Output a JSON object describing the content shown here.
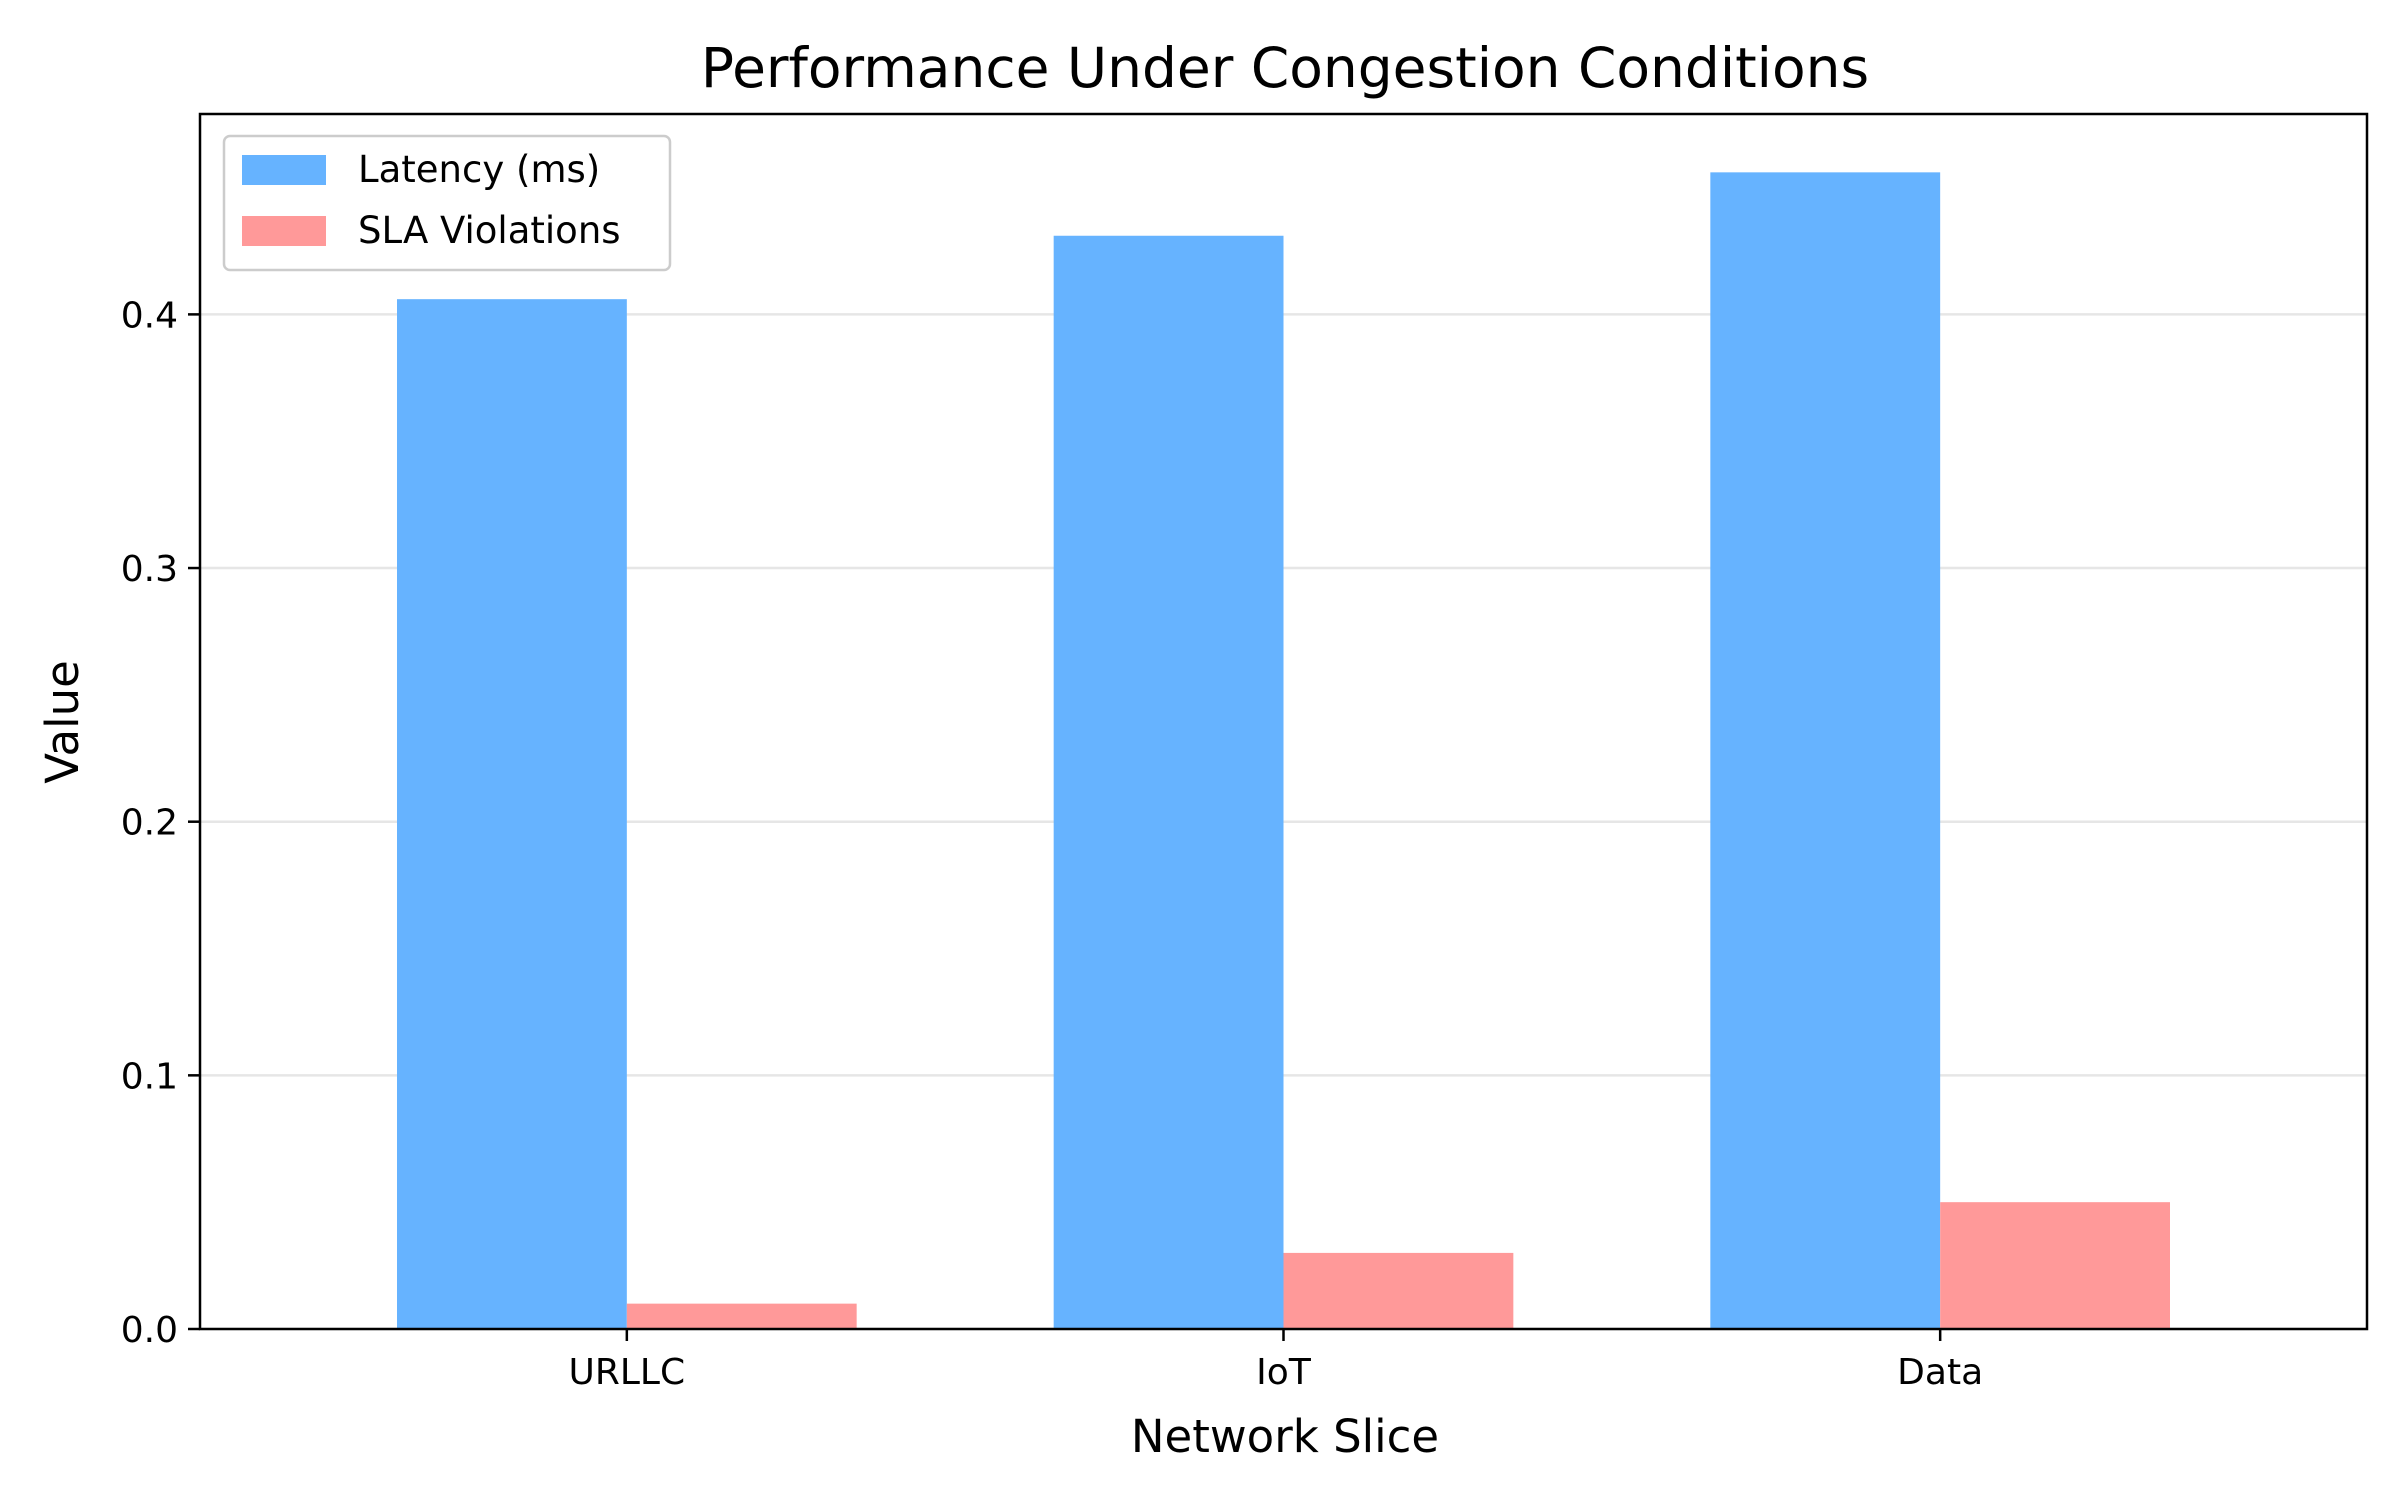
{
  "chart_data": {
    "type": "bar",
    "title": "Performance Under Congestion Conditions",
    "xlabel": "Network Slice",
    "ylabel": "Value",
    "categories": [
      "URLLC",
      "IoT",
      "Data"
    ],
    "series": [
      {
        "name": "Latency (ms)",
        "values": [
          0.406,
          0.431,
          0.456
        ],
        "color": "#66b3ff"
      },
      {
        "name": "SLA Violations",
        "values": [
          0.01,
          0.03,
          0.05
        ],
        "color": "#ff9999"
      }
    ],
    "ylim": [
      0,
      0.479
    ],
    "yticks": [
      0.0,
      0.1,
      0.2,
      0.3,
      0.4
    ],
    "ytick_labels": [
      "0.0",
      "0.1",
      "0.2",
      "0.3",
      "0.4"
    ],
    "grid": {
      "axis": "y",
      "enabled": true,
      "color": "#e6e6e6"
    },
    "legend": {
      "position": "top-left"
    }
  }
}
